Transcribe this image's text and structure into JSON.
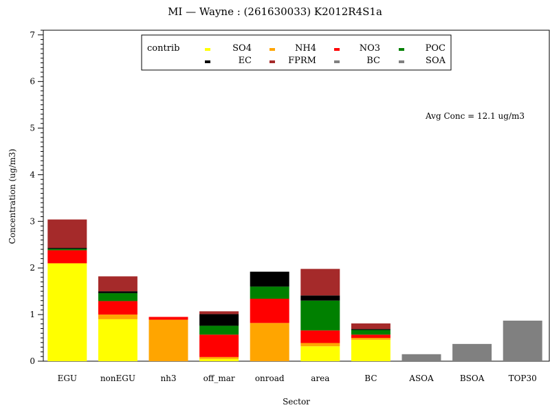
{
  "chart_data": {
    "type": "bar",
    "stacked": true,
    "title": "MI — Wayne : (261630033) K2012R4S1a",
    "xlabel": "Sector",
    "ylabel": "Concentration (ug/m3)",
    "ylim": [
      0,
      7.1
    ],
    "yticks": [
      "0",
      "1",
      "2",
      "3",
      "4",
      "5",
      "6",
      "7"
    ],
    "grid": false,
    "legend_title": "contrib",
    "legend_placement": "top-center",
    "annotation": "Avg Conc =  12.1 ug/m3",
    "categories": [
      "EGU",
      "nonEGU",
      "nh3",
      "off_mar",
      "onroad",
      "area",
      "BC",
      "ASOA",
      "BSOA",
      "TOP30"
    ],
    "series": [
      {
        "name": "SO4",
        "color": "#ffff00",
        "values": [
          2.1,
          0.9,
          0.0,
          0.05,
          0.0,
          0.32,
          0.46,
          0.0,
          0.0,
          0.0
        ]
      },
      {
        "name": "NH4",
        "color": "#ffa500",
        "values": [
          0.0,
          0.1,
          0.89,
          0.04,
          0.82,
          0.07,
          0.04,
          0.0,
          0.0,
          0.0
        ]
      },
      {
        "name": "NO3",
        "color": "#ff0000",
        "values": [
          0.28,
          0.29,
          0.06,
          0.48,
          0.52,
          0.27,
          0.07,
          0.0,
          0.0,
          0.0
        ]
      },
      {
        "name": "POC",
        "color": "#008000",
        "values": [
          0.03,
          0.17,
          0.0,
          0.19,
          0.26,
          0.64,
          0.1,
          0.0,
          0.0,
          0.0
        ]
      },
      {
        "name": "EC",
        "color": "#000000",
        "values": [
          0.02,
          0.04,
          0.0,
          0.25,
          0.32,
          0.11,
          0.02,
          0.0,
          0.0,
          0.0
        ]
      },
      {
        "name": "FPRM",
        "color": "#a52a2a",
        "values": [
          0.61,
          0.32,
          0.0,
          0.06,
          0.0,
          0.57,
          0.12,
          0.0,
          0.0,
          0.0
        ]
      },
      {
        "name": "BC",
        "color": "#808080",
        "values": [
          0.0,
          0.0,
          0.0,
          0.0,
          0.0,
          0.0,
          0.0,
          0.0,
          0.0,
          0.0
        ]
      },
      {
        "name": "SOA",
        "color": "#808080",
        "values": [
          0.0,
          0.0,
          0.0,
          0.0,
          0.0,
          0.0,
          0.0,
          0.15,
          0.37,
          0.87
        ]
      }
    ]
  }
}
